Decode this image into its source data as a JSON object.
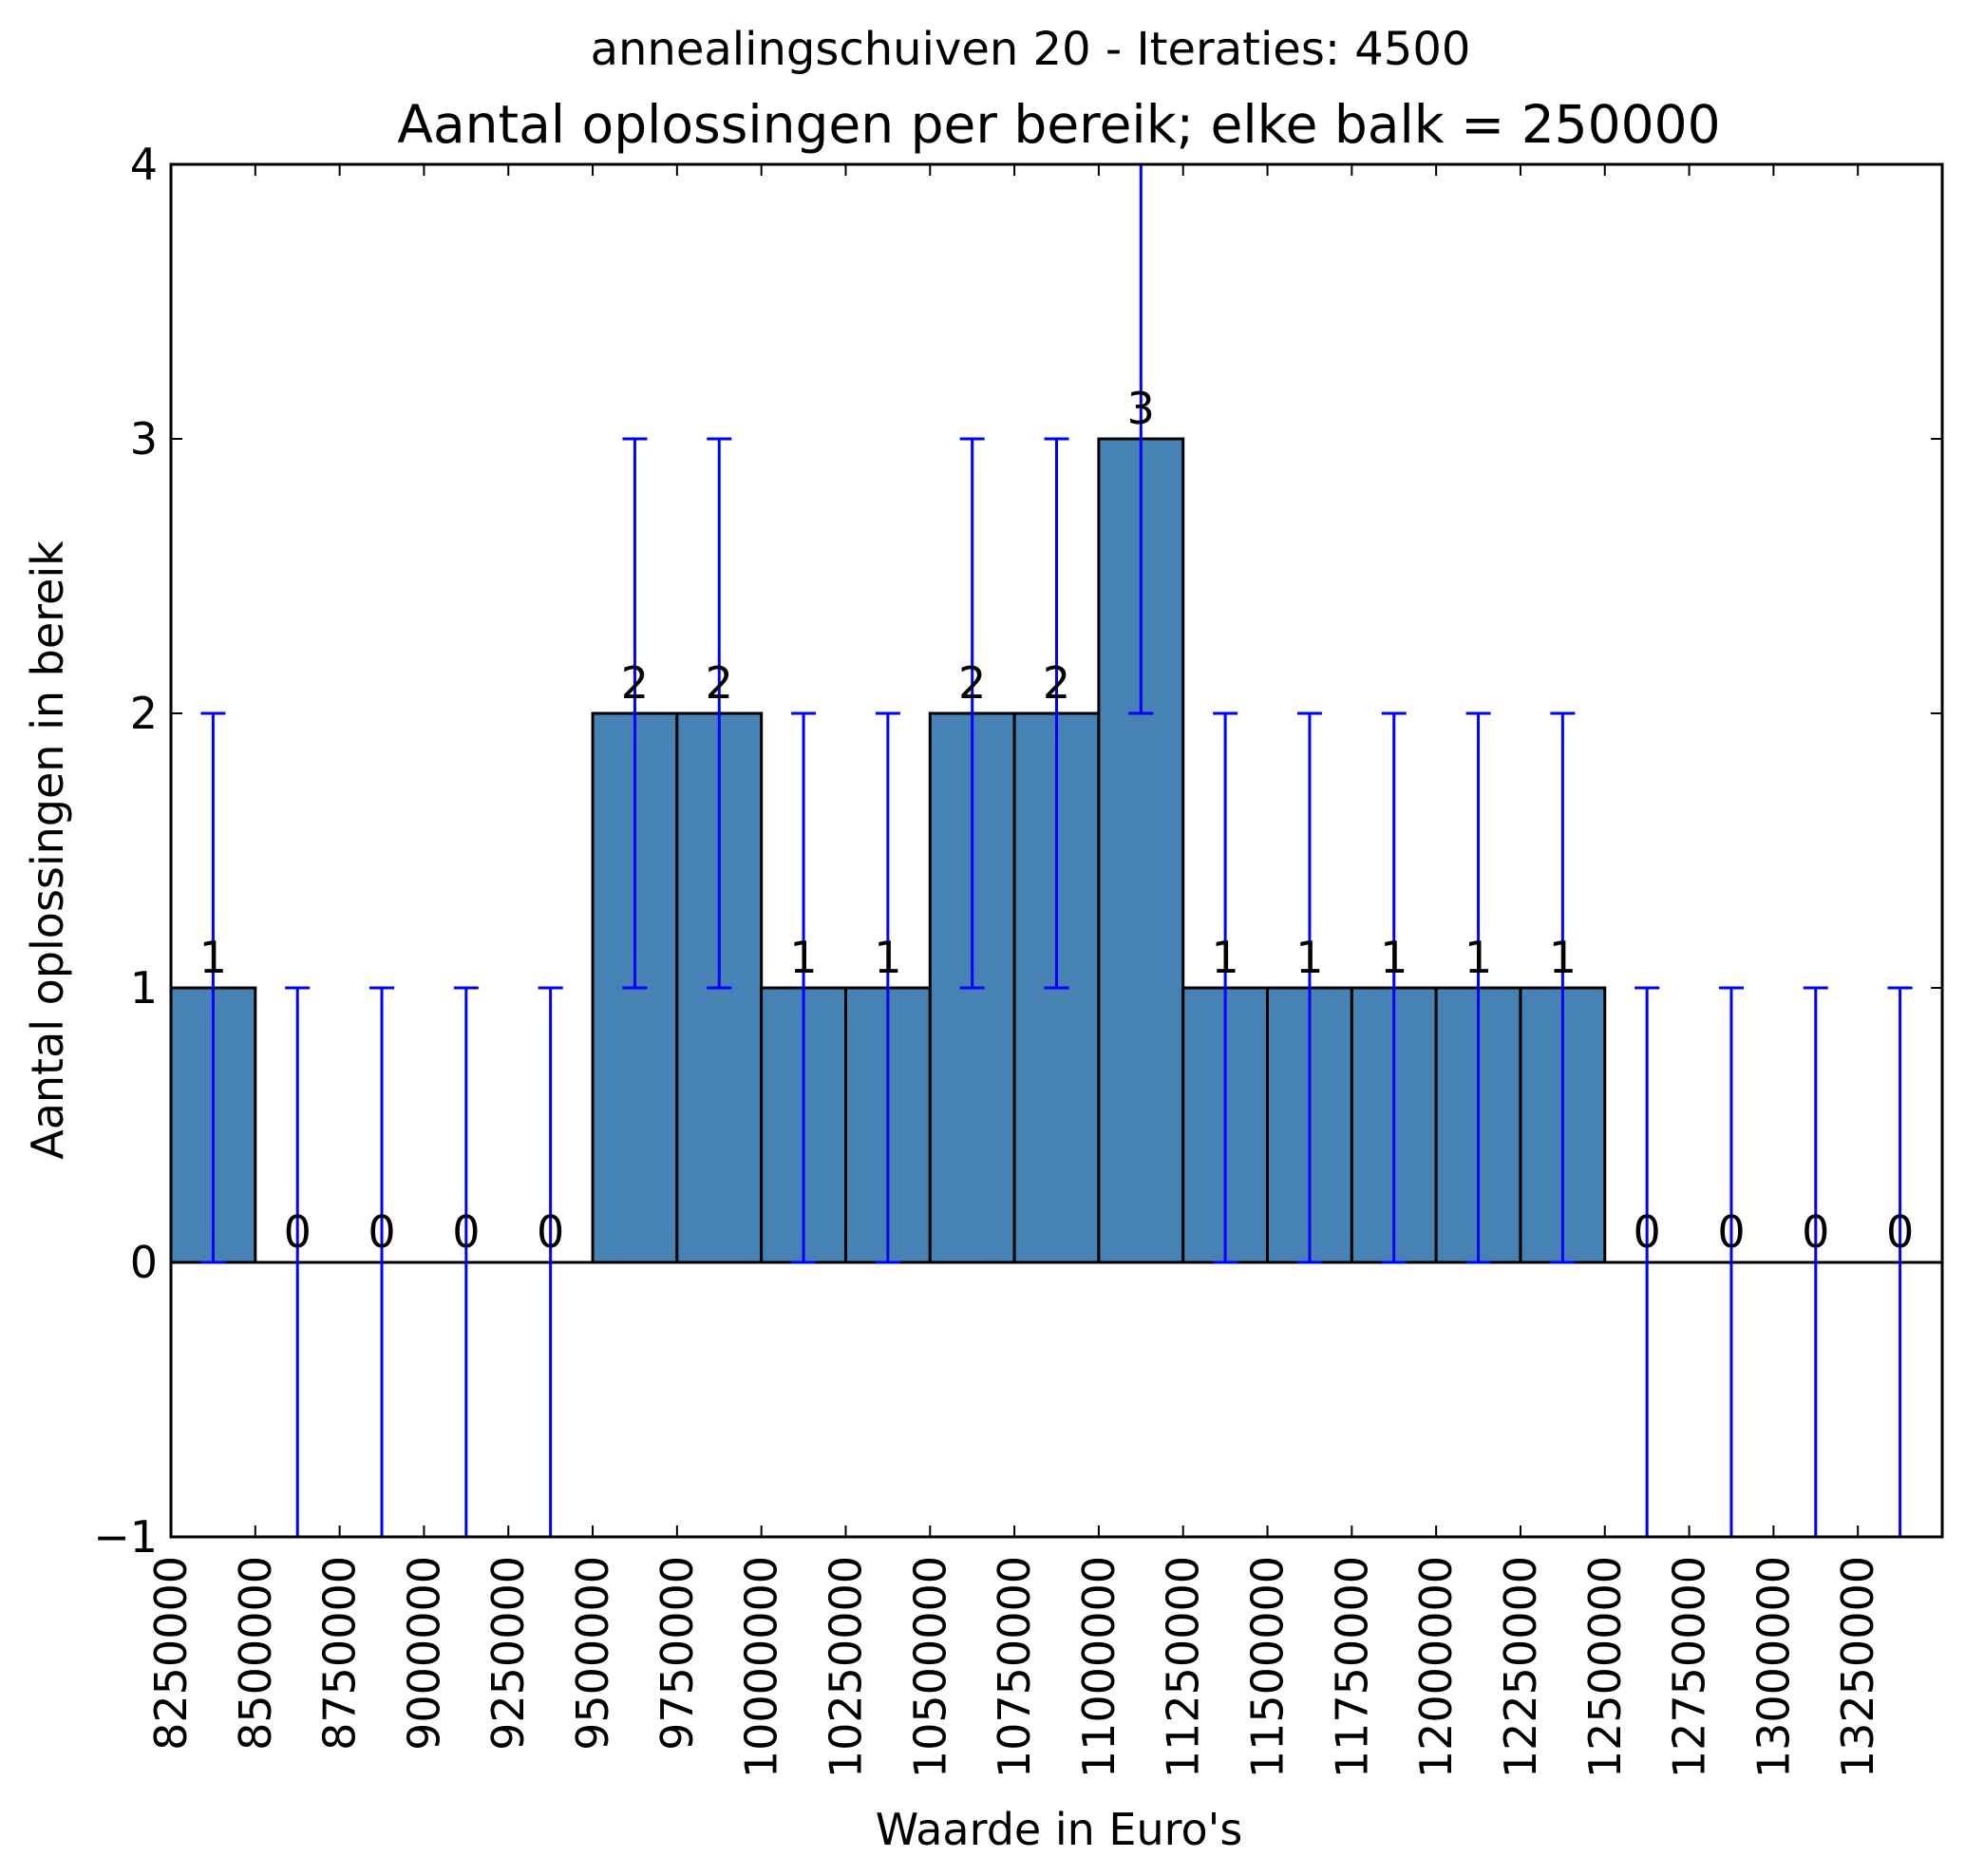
{
  "chart_data": {
    "type": "bar",
    "suptitle": "annealingschuiven 20 - Iteraties: 4500",
    "title": "Aantal oplossingen per bereik; elke balk = 250000",
    "xlabel": "Waarde in Euro's",
    "ylabel": "Aantal oplossingen in bereik",
    "ylim": [
      -1,
      4
    ],
    "xlim": [
      8250000,
      13500000
    ],
    "bin_width": 250000,
    "yticks": [
      "4",
      "3",
      "2",
      "1",
      "0",
      "−1"
    ],
    "ytick_values": [
      4,
      3,
      2,
      1,
      0,
      -1
    ],
    "xtick_labels": [
      "8250000",
      "8500000",
      "8750000",
      "9000000",
      "9250000",
      "9500000",
      "9750000",
      "10000000",
      "10250000",
      "10500000",
      "10750000",
      "11000000",
      "11250000",
      "11500000",
      "11750000",
      "12000000",
      "12250000",
      "12500000",
      "12750000",
      "13000000",
      "13250000"
    ],
    "bin_starts": [
      8250000,
      8500000,
      8750000,
      9000000,
      9250000,
      9500000,
      9750000,
      10000000,
      10250000,
      10500000,
      10750000,
      11000000,
      11250000,
      11500000,
      11750000,
      12000000,
      12250000,
      12500000,
      12750000,
      13000000,
      13250000
    ],
    "values": [
      1,
      0,
      0,
      0,
      0,
      2,
      2,
      1,
      1,
      2,
      2,
      3,
      1,
      1,
      1,
      1,
      1,
      0,
      0,
      0,
      0
    ],
    "value_labels": [
      "1",
      "0",
      "0",
      "0",
      "0",
      "2",
      "2",
      "1",
      "1",
      "2",
      "2",
      "3",
      "1",
      "1",
      "1",
      "1",
      "1",
      "0",
      "0",
      "0",
      "0"
    ],
    "errors": [
      1,
      1,
      1,
      1,
      1,
      1,
      1,
      1,
      1,
      1,
      1,
      1,
      1,
      1,
      1,
      1,
      1,
      1,
      1,
      1,
      1
    ],
    "grid": false,
    "colors": {
      "bar": "#4682b4",
      "error": "#0000ff",
      "edge": "#000000"
    }
  }
}
